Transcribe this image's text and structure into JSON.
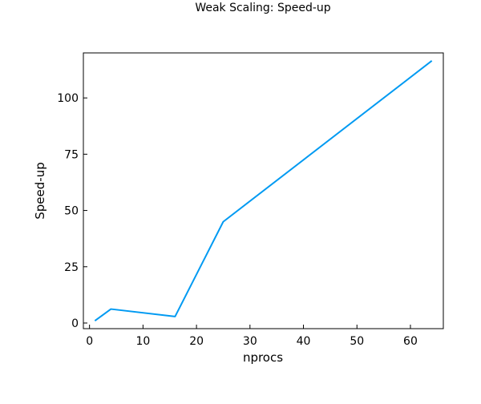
{
  "chart_data": {
    "type": "line",
    "title": "Weak Scaling: Speed-up",
    "xlabel": "nprocs",
    "ylabel": "Speed-up",
    "xlim": [
      -1.15,
      66.15
    ],
    "ylim": [
      -2.5,
      120.0
    ],
    "xticks": [
      0,
      10,
      20,
      30,
      40,
      50,
      60
    ],
    "yticks": [
      0,
      25,
      50,
      75,
      100
    ],
    "grid": false,
    "legend": false,
    "series": [
      {
        "color": "#009AF2",
        "x": [
          1,
          4,
          16,
          25,
          64
        ],
        "y": [
          1.0,
          6.2,
          2.9,
          45.0,
          116.5
        ]
      }
    ]
  }
}
